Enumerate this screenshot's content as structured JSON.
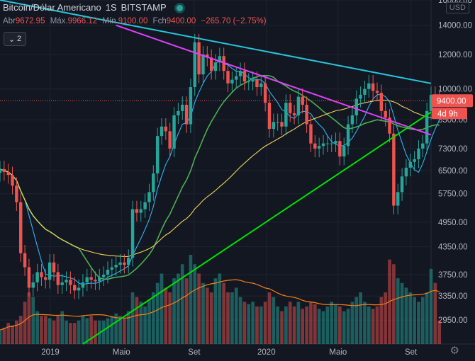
{
  "header": {
    "symbol": "Bitcoin/Dólar Americano",
    "interval": "1S",
    "exchange": "BITSTAMP",
    "ohlc": [
      {
        "label": "Abr",
        "value": "9672.95"
      },
      {
        "label": "Máx.",
        "value": "9966.12"
      },
      {
        "label": "Mín.",
        "value": "9100.00"
      },
      {
        "label": "Fch",
        "value": "9400.00"
      }
    ],
    "change": "−265.70 (−2.75%)",
    "indicator_count": "2",
    "currency_badge": "USD"
  },
  "chart_data": {
    "type": "candlestick",
    "price_scale": "log",
    "ylim": [
      2600,
      16000
    ],
    "x_range": [
      "2018-10-08",
      "2020-10-05"
    ],
    "y_ticks": [
      "16000.00",
      "14000.00",
      "12000.00",
      "10000.00",
      "8500.00",
      "7300.00",
      "6500.00",
      "5750.00",
      "4950.00",
      "4350.00",
      "3750.00",
      "3350.00",
      "2950.00"
    ],
    "x_ticks": [
      {
        "date": "2019-01-01",
        "label": "2019"
      },
      {
        "date": "2019-05-01",
        "label": "Maio"
      },
      {
        "date": "2019-09-01",
        "label": "Set"
      },
      {
        "date": "2020-01-01",
        "label": "2020"
      },
      {
        "date": "2020-05-01",
        "label": "Maio"
      },
      {
        "date": "2020-09-01",
        "label": "Set"
      }
    ],
    "colors": {
      "up": "#26a69a",
      "down": "#ef5350",
      "ma_fast": "#29b6f6",
      "ma_mid": "#4caf50",
      "ma_slow": "#f0d458",
      "vol_ma": "#f57f17",
      "trend_cyan": "#26c6da",
      "trend_magenta": "#e040fb",
      "trend_green": "#00e000",
      "last_price": "#ef5350"
    },
    "last_price_label": "9400.00",
    "countdown_label": "4d 9h",
    "closes": [
      6550,
      6450,
      6350,
      6000,
      5500,
      4200,
      3900,
      3500,
      3600,
      3800,
      3700,
      3650,
      4000,
      3800,
      3550,
      3600,
      3650,
      3550,
      3450,
      3500,
      3600,
      3700,
      3650,
      3620,
      3700,
      3750,
      3850,
      3900,
      3950,
      4000,
      3950,
      4100,
      5300,
      5200,
      5300,
      5500,
      5800,
      6400,
      7800,
      8200,
      8000,
      7300,
      8700,
      8900,
      9200,
      8300,
      10100,
      12800,
      10800,
      12000,
      11800,
      11000,
      11500,
      11900,
      11000,
      10300,
      10500,
      10700,
      11000,
      10400,
      10400,
      10500,
      10100,
      10300,
      9300,
      8100,
      8400,
      8400,
      8200,
      9300,
      8800,
      8700,
      9600,
      9200,
      8300,
      7500,
      7300,
      7400,
      7500,
      7500,
      7500,
      7600,
      7000,
      7400,
      8300,
      8700,
      9500,
      9700,
      10000,
      10300,
      9900,
      9800,
      8900,
      8600,
      7900,
      5400,
      5800,
      6300,
      6600,
      6800,
      6900,
      7300,
      7500,
      8900,
      9700,
      9600,
      9400
    ],
    "volumes": [
      6,
      7,
      9,
      8,
      10,
      12,
      18,
      22,
      20,
      14,
      12,
      12,
      11,
      10,
      12,
      14,
      10,
      9,
      9,
      10,
      12,
      11,
      12,
      10,
      10,
      10,
      11,
      12,
      13,
      12,
      11,
      14,
      22,
      20,
      18,
      16,
      19,
      22,
      26,
      30,
      24,
      22,
      28,
      30,
      34,
      28,
      38,
      34,
      30,
      26,
      24,
      22,
      28,
      30,
      26,
      22,
      22,
      24,
      20,
      18,
      17,
      18,
      16,
      16,
      18,
      22,
      20,
      16,
      14,
      16,
      18,
      16,
      18,
      15,
      16,
      18,
      17,
      15,
      14,
      16,
      18,
      17,
      16,
      14,
      15,
      18,
      20,
      22,
      18,
      16,
      15,
      16,
      20,
      22,
      36,
      34,
      28,
      26,
      24,
      22,
      20,
      18,
      20,
      22,
      32,
      26,
      10
    ]
  }
}
